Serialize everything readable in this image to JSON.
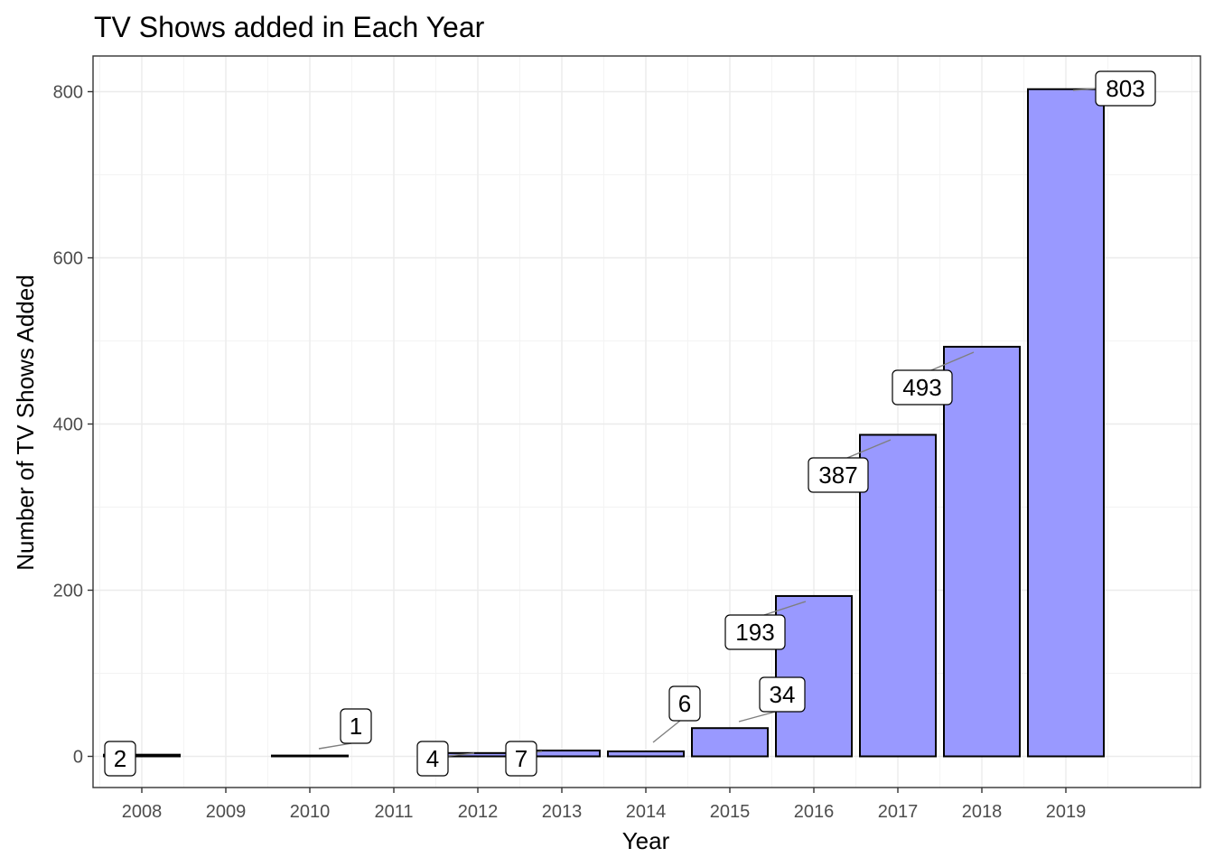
{
  "chart_data": {
    "type": "bar",
    "title": "TV Shows added in Each Year",
    "xlabel": "Year",
    "ylabel": "Number of TV Shows Added",
    "categories": [
      "2008",
      "2009",
      "2010",
      "2011",
      "2012",
      "2013",
      "2014",
      "2015",
      "2016",
      "2017",
      "2018",
      "2019"
    ],
    "values": [
      2,
      0,
      1,
      0,
      4,
      7,
      6,
      34,
      193,
      387,
      493,
      803
    ],
    "bar_labels": [
      {
        "category": "2008",
        "value": 2,
        "text": "2"
      },
      {
        "category": "2010",
        "value": 1,
        "text": "1"
      },
      {
        "category": "2012",
        "value": 4,
        "text": "4"
      },
      {
        "category": "2013",
        "value": 7,
        "text": "7"
      },
      {
        "category": "2014",
        "value": 6,
        "text": "6"
      },
      {
        "category": "2015",
        "value": 34,
        "text": "34"
      },
      {
        "category": "2016",
        "value": 193,
        "text": "193"
      },
      {
        "category": "2017",
        "value": 387,
        "text": "387"
      },
      {
        "category": "2018",
        "value": 493,
        "text": "493"
      },
      {
        "category": "2019",
        "value": 803,
        "text": "803"
      }
    ],
    "yticks": [
      0,
      200,
      400,
      600,
      800
    ],
    "ylim": [
      -40,
      840
    ],
    "grid": true,
    "legend": "none",
    "bar_color": "#9999ff",
    "bar_edge_color": "#000000"
  }
}
